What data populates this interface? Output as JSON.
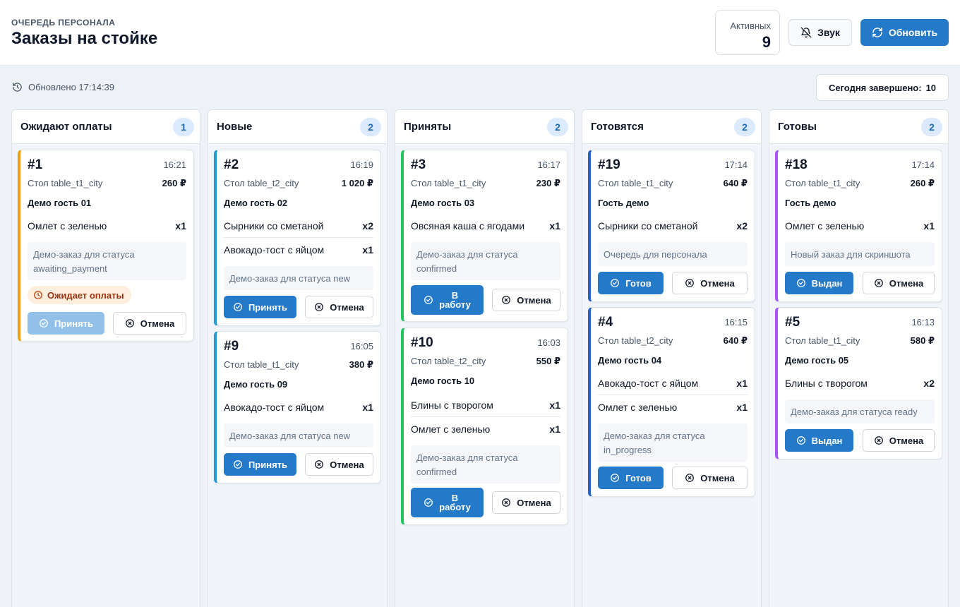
{
  "header": {
    "eyebrow": "ОЧЕРЕДЬ ПЕРСОНАЛА",
    "title": "Заказы на стойке",
    "active_label": "Активных",
    "active_value": "9",
    "sound_label": "Звук",
    "sound_icon": "bell-off-icon",
    "refresh_label": "Обновить",
    "refresh_icon": "refresh-icon"
  },
  "status": {
    "updated": "Обновлено 17:14:39",
    "done_label": "Сегодня завершено:",
    "done_value": "10"
  },
  "columns": [
    {
      "title": "Ожидают оплаты",
      "count": "1",
      "cards": [
        {
          "num": "#1",
          "time": "16:21",
          "table": "Стол table_t1_city",
          "sum": "260 ₽",
          "guest": "Демо гость 01",
          "items": [
            {
              "name": "Омлет с зеленью",
              "qty": "x1"
            }
          ],
          "note": "Демо-заказ для статуса awaiting_payment",
          "badge": "Ожидает оплаты",
          "primary": "Принять",
          "cancel": "Отмена"
        }
      ]
    },
    {
      "title": "Новые",
      "count": "2",
      "cards": [
        {
          "num": "#2",
          "time": "16:19",
          "table": "Стол table_t2_city",
          "sum": "1 020 ₽",
          "guest": "Демо гость 02",
          "items": [
            {
              "name": "Сырники со сметаной",
              "qty": "x2"
            },
            {
              "name": "Авокадо-тост с яйцом",
              "qty": "x1"
            }
          ],
          "note": "Демо-заказ для статуса new",
          "primary": "Принять",
          "cancel": "Отмена"
        },
        {
          "num": "#9",
          "time": "16:05",
          "table": "Стол table_t1_city",
          "sum": "380 ₽",
          "guest": "Демо гость 09",
          "items": [
            {
              "name": "Авокадо-тост с яйцом",
              "qty": "x1"
            }
          ],
          "note": "Демо-заказ для статуса new",
          "primary": "Принять",
          "cancel": "Отмена"
        }
      ]
    },
    {
      "title": "Приняты",
      "count": "2",
      "cards": [
        {
          "num": "#3",
          "time": "16:17",
          "table": "Стол table_t1_city",
          "sum": "230 ₽",
          "guest": "Демо гость 03",
          "items": [
            {
              "name": "Овсяная каша с ягодами",
              "qty": "x1"
            }
          ],
          "note": "Демо-заказ для статуса confirmed",
          "primary_l1": "В",
          "primary_l2": "работу",
          "cancel": "Отмена"
        },
        {
          "num": "#10",
          "time": "16:03",
          "table": "Стол table_t2_city",
          "sum": "550 ₽",
          "guest": "Демо гость 10",
          "items": [
            {
              "name": "Блины с творогом",
              "qty": "x1"
            },
            {
              "name": "Омлет с зеленью",
              "qty": "x1"
            }
          ],
          "note": "Демо-заказ для статуса confirmed",
          "primary_l1": "В",
          "primary_l2": "работу",
          "cancel": "Отмена"
        }
      ]
    },
    {
      "title": "Готовятся",
      "count": "2",
      "cards": [
        {
          "num": "#19",
          "time": "17:14",
          "table": "Стол table_t1_city",
          "sum": "640 ₽",
          "guest": "Гость демо",
          "items": [
            {
              "name": "Сырники со сметаной",
              "qty": "x2"
            }
          ],
          "note": "Очередь для персонала",
          "primary": "Готов",
          "cancel": "Отмена"
        },
        {
          "num": "#4",
          "time": "16:15",
          "table": "Стол table_t2_city",
          "sum": "640 ₽",
          "guest": "Демо гость 04",
          "items": [
            {
              "name": "Авокадо-тост с яйцом",
              "qty": "x1"
            },
            {
              "name": "Омлет с зеленью",
              "qty": "x1"
            }
          ],
          "note": "Демо-заказ для статуса in_progress",
          "primary": "Готов",
          "cancel": "Отмена"
        }
      ]
    },
    {
      "title": "Готовы",
      "count": "2",
      "cards": [
        {
          "num": "#18",
          "time": "17:14",
          "table": "Стол table_t1_city",
          "sum": "260 ₽",
          "guest": "Гость демо",
          "items": [
            {
              "name": "Омлет с зеленью",
              "qty": "x1"
            }
          ],
          "note": "Новый заказ для скриншота",
          "primary": "Выдан",
          "cancel": "Отмена"
        },
        {
          "num": "#5",
          "time": "16:13",
          "table": "Стол table_t1_city",
          "sum": "580 ₽",
          "guest": "Демо гость 05",
          "items": [
            {
              "name": "Блины с творогом",
              "qty": "x2"
            }
          ],
          "note": "Демо-заказ для статуса ready",
          "primary": "Выдан",
          "cancel": "Отмена"
        }
      ]
    }
  ],
  "colors": {
    "awaiting": "#f59e0b",
    "new": "#1f9bd7",
    "confirmed": "#22c55e",
    "in_progress": "#2563c9",
    "ready": "#a855f7",
    "primary": "#2479c8"
  }
}
